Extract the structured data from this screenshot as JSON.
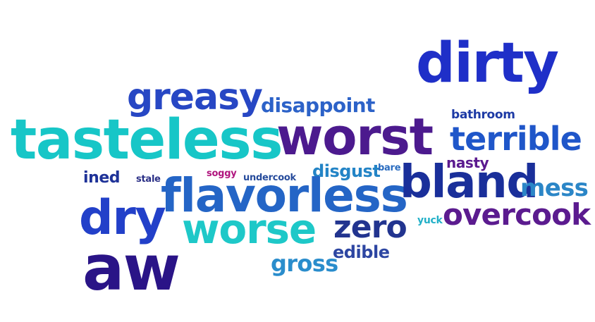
{
  "words": [
    {
      "text": "dirty",
      "color": "#1f2fc8"
    },
    {
      "text": "greasy",
      "color": "#2747c4"
    },
    {
      "text": "disappoint",
      "color": "#2c62c8"
    },
    {
      "text": "tasteless",
      "color": "#17c6c7"
    },
    {
      "text": "worst",
      "color": "#4c1a8e"
    },
    {
      "text": "terrible",
      "color": "#1f56c9"
    },
    {
      "text": "bathroom",
      "color": "#1d3aa5"
    },
    {
      "text": "ined",
      "color": "#1e3298"
    },
    {
      "text": "stale",
      "color": "#2a2f86"
    },
    {
      "text": "soggy",
      "color": "#b0157e"
    },
    {
      "text": "undercook",
      "color": "#274c9c"
    },
    {
      "text": "disgust",
      "color": "#2384c6"
    },
    {
      "text": "bare",
      "color": "#2a6cc0"
    },
    {
      "text": "nasty",
      "color": "#5b1a8f"
    },
    {
      "text": "flavorless",
      "color": "#2465c6"
    },
    {
      "text": "bland",
      "color": "#1a2f9a"
    },
    {
      "text": "mess",
      "color": "#2b86c7"
    },
    {
      "text": "dry",
      "color": "#2240c9"
    },
    {
      "text": "worse",
      "color": "#1ec8c8"
    },
    {
      "text": "zero",
      "color": "#22348f"
    },
    {
      "text": "overcook",
      "color": "#5b1b8f"
    },
    {
      "text": "yuck",
      "color": "#22b0c8"
    },
    {
      "text": "edible",
      "color": "#2d46a2"
    },
    {
      "text": "gross",
      "color": "#2a8dcc"
    },
    {
      "text": "aw",
      "color": "#2a1487"
    }
  ]
}
